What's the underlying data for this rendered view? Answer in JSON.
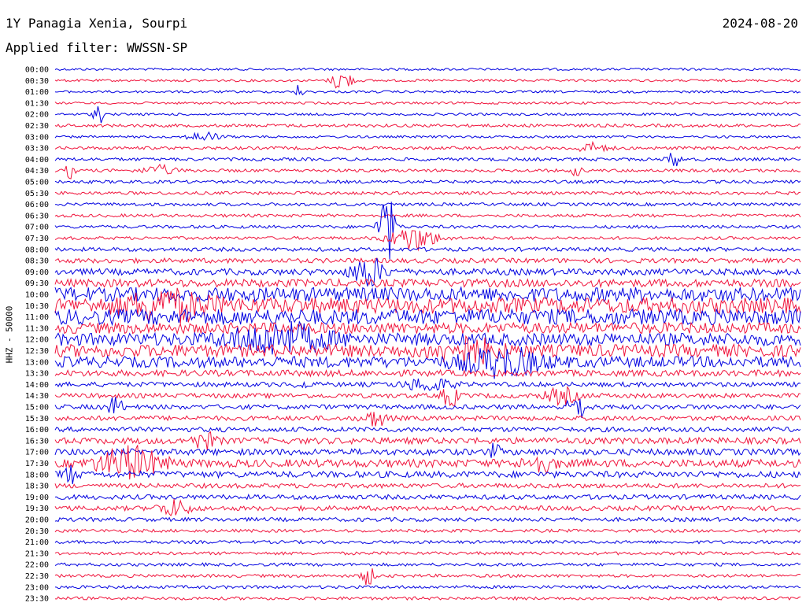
{
  "header": {
    "station": "1Y Panagia Xenia, Sourpi",
    "filter": "Applied filter: WWSSN-SP",
    "date": "2024-08-20"
  },
  "colors": {
    "even": "#0000e0",
    "odd": "#f0143c"
  },
  "chart_data": {
    "type": "line",
    "ylabel": "HHZ - 50000",
    "tick_labels": [
      "00:00",
      "00:30",
      "01:00",
      "01:30",
      "02:00",
      "02:30",
      "03:00",
      "03:30",
      "04:00",
      "04:30",
      "05:00",
      "05:30",
      "06:00",
      "06:30",
      "07:00",
      "07:30",
      "08:00",
      "08:30",
      "09:00",
      "09:30",
      "10:00",
      "10:30",
      "11:00",
      "11:30",
      "12:00",
      "12:30",
      "13:00",
      "13:30",
      "14:00",
      "14:30",
      "15:00",
      "15:30",
      "16:00",
      "16:30",
      "17:00",
      "17:30",
      "18:00",
      "18:30",
      "19:00",
      "19:30",
      "20:00",
      "20:30",
      "21:00",
      "21:30",
      "22:00",
      "22:30",
      "23:00",
      "23:30"
    ],
    "noise": [
      1.5,
      1.5,
      1.5,
      1.5,
      1.5,
      2,
      1.5,
      2,
      2,
      2,
      2,
      2,
      2,
      2,
      2,
      2,
      2.5,
      3,
      4,
      5,
      9,
      10,
      10,
      7,
      8,
      8,
      7,
      4,
      3,
      3,
      3,
      3,
      3,
      4,
      4,
      5,
      4,
      3,
      3,
      3,
      2.5,
      2,
      2,
      2,
      2,
      2,
      2,
      2
    ],
    "events": [
      {
        "trace": 1,
        "x": 0.385,
        "amp": 15,
        "width": 0.012
      },
      {
        "trace": 2,
        "x": 0.328,
        "amp": 12,
        "width": 0.004
      },
      {
        "trace": 4,
        "x": 0.058,
        "amp": 14,
        "width": 0.006
      },
      {
        "trace": 6,
        "x": 0.2,
        "amp": 6,
        "width": 0.02
      },
      {
        "trace": 7,
        "x": 0.72,
        "amp": 6,
        "width": 0.02
      },
      {
        "trace": 8,
        "x": 0.83,
        "amp": 10,
        "width": 0.008
      },
      {
        "trace": 9,
        "x": 0.02,
        "amp": 9,
        "width": 0.006
      },
      {
        "trace": 9,
        "x": 0.14,
        "amp": 6,
        "width": 0.02
      },
      {
        "trace": 9,
        "x": 0.7,
        "amp": 10,
        "width": 0.005
      },
      {
        "trace": 14,
        "x": 0.445,
        "amp": 48,
        "width": 0.01
      },
      {
        "trace": 15,
        "x": 0.48,
        "amp": 15,
        "width": 0.03
      },
      {
        "trace": 18,
        "x": 0.42,
        "amp": 20,
        "width": 0.02
      },
      {
        "trace": 21,
        "x": 0.15,
        "amp": 16,
        "width": 0.05
      },
      {
        "trace": 24,
        "x": 0.3,
        "amp": 18,
        "width": 0.06
      },
      {
        "trace": 25,
        "x": 0.55,
        "amp": 14,
        "width": 0.04
      },
      {
        "trace": 26,
        "x": 0.6,
        "amp": 16,
        "width": 0.05
      },
      {
        "trace": 28,
        "x": 0.33,
        "amp": 8,
        "width": 0.006
      },
      {
        "trace": 28,
        "x": 0.5,
        "amp": 8,
        "width": 0.03
      },
      {
        "trace": 29,
        "x": 0.53,
        "amp": 14,
        "width": 0.01
      },
      {
        "trace": 29,
        "x": 0.68,
        "amp": 10,
        "width": 0.02
      },
      {
        "trace": 30,
        "x": 0.08,
        "amp": 12,
        "width": 0.01
      },
      {
        "trace": 30,
        "x": 0.7,
        "amp": 16,
        "width": 0.012
      },
      {
        "trace": 31,
        "x": 0.43,
        "amp": 10,
        "width": 0.015
      },
      {
        "trace": 33,
        "x": 0.2,
        "amp": 10,
        "width": 0.015
      },
      {
        "trace": 34,
        "x": 0.59,
        "amp": 10,
        "width": 0.006
      },
      {
        "trace": 35,
        "x": 0.1,
        "amp": 20,
        "width": 0.04
      },
      {
        "trace": 35,
        "x": 0.65,
        "amp": 10,
        "width": 0.02
      },
      {
        "trace": 36,
        "x": 0.02,
        "amp": 10,
        "width": 0.01
      },
      {
        "trace": 38,
        "x": 0.73,
        "amp": 6,
        "width": 0.003
      },
      {
        "trace": 39,
        "x": 0.16,
        "amp": 10,
        "width": 0.02
      },
      {
        "trace": 45,
        "x": 0.42,
        "amp": 12,
        "width": 0.008
      }
    ]
  }
}
